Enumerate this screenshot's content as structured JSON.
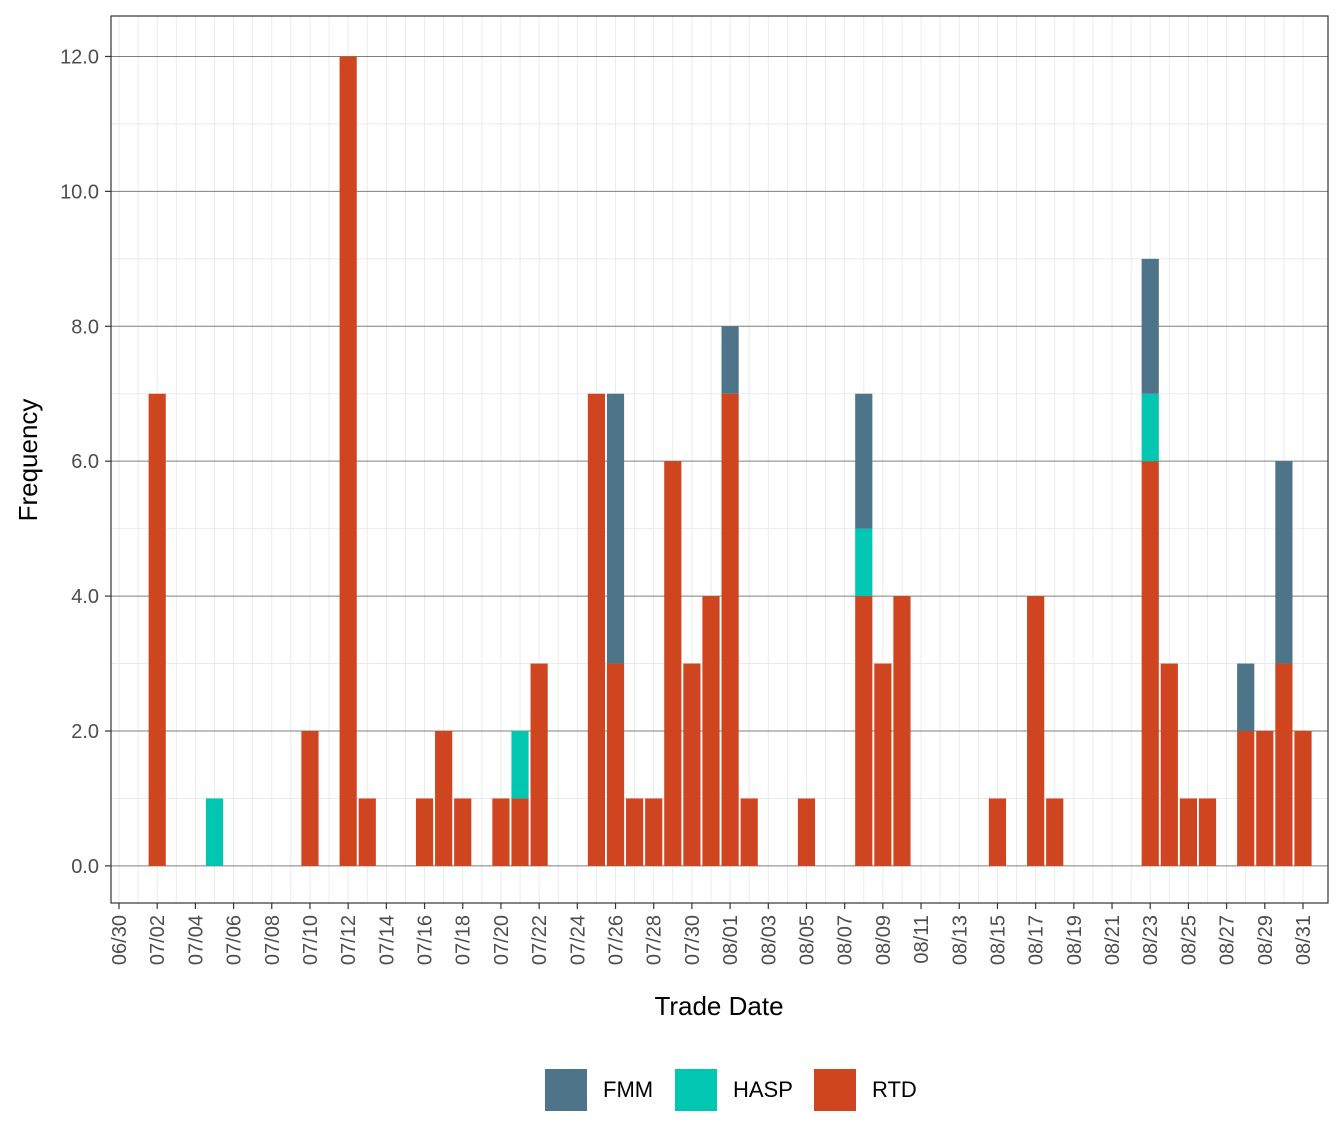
{
  "chart_data": {
    "type": "bar",
    "stacked": true,
    "xlabel": "Trade Date",
    "ylabel": "Frequency",
    "ylim": [
      -0.55,
      12.6
    ],
    "yticks": [
      0,
      2,
      4,
      6,
      8,
      10,
      12
    ],
    "ytick_labels": [
      "0.0",
      "2.0",
      "4.0",
      "6.0",
      "8.0",
      "10.0",
      "12.0"
    ],
    "grid": true,
    "legend_position": "bottom",
    "x_range": [
      "06/30",
      "08/31"
    ],
    "x_tick_labels": [
      "06/30",
      "07/02",
      "07/04",
      "07/06",
      "07/08",
      "07/10",
      "07/12",
      "07/14",
      "07/16",
      "07/18",
      "07/20",
      "07/22",
      "07/24",
      "07/26",
      "07/28",
      "07/30",
      "08/01",
      "08/03",
      "08/05",
      "08/07",
      "08/09",
      "08/11",
      "08/13",
      "08/15",
      "08/17",
      "08/19",
      "08/21",
      "08/23",
      "08/25",
      "08/27",
      "08/29",
      "08/31"
    ],
    "dates": [
      "07/02",
      "07/05",
      "07/10",
      "07/12",
      "07/13",
      "07/16",
      "07/17",
      "07/18",
      "07/20",
      "07/21",
      "07/22",
      "07/25",
      "07/26",
      "07/27",
      "07/28",
      "07/29",
      "07/30",
      "07/31",
      "08/01",
      "08/02",
      "08/05",
      "08/08",
      "08/09",
      "08/10",
      "08/15",
      "08/17",
      "08/18",
      "08/23",
      "08/24",
      "08/25",
      "08/26",
      "08/28",
      "08/29",
      "08/30",
      "08/31"
    ],
    "series": [
      {
        "name": "RTD",
        "color": "#CF4520",
        "values": [
          7,
          0,
          2,
          12,
          1,
          1,
          2,
          1,
          1,
          1,
          3,
          7,
          3,
          1,
          1,
          6,
          3,
          4,
          7,
          1,
          1,
          4,
          3,
          4,
          1,
          4,
          1,
          6,
          3,
          1,
          1,
          2,
          2,
          3,
          2
        ]
      },
      {
        "name": "HASP",
        "color": "#00C6B2",
        "values": [
          0,
          1,
          0,
          0,
          0,
          0,
          0,
          0,
          0,
          1,
          0,
          0,
          0,
          0,
          0,
          0,
          0,
          0,
          0,
          0,
          0,
          1,
          0,
          0,
          0,
          0,
          0,
          1,
          0,
          0,
          0,
          0,
          0,
          0,
          0
        ]
      },
      {
        "name": "FMM",
        "color": "#4E7489",
        "values": [
          0,
          0,
          0,
          0,
          0,
          0,
          0,
          0,
          0,
          0,
          0,
          0,
          4,
          0,
          0,
          0,
          0,
          0,
          1,
          0,
          0,
          2,
          0,
          0,
          0,
          0,
          0,
          2,
          0,
          0,
          0,
          1,
          0,
          3,
          0
        ]
      }
    ],
    "legend": [
      {
        "name": "FMM",
        "color": "#4E7489"
      },
      {
        "name": "HASP",
        "color": "#00C6B2"
      },
      {
        "name": "RTD",
        "color": "#CF4520"
      }
    ]
  }
}
